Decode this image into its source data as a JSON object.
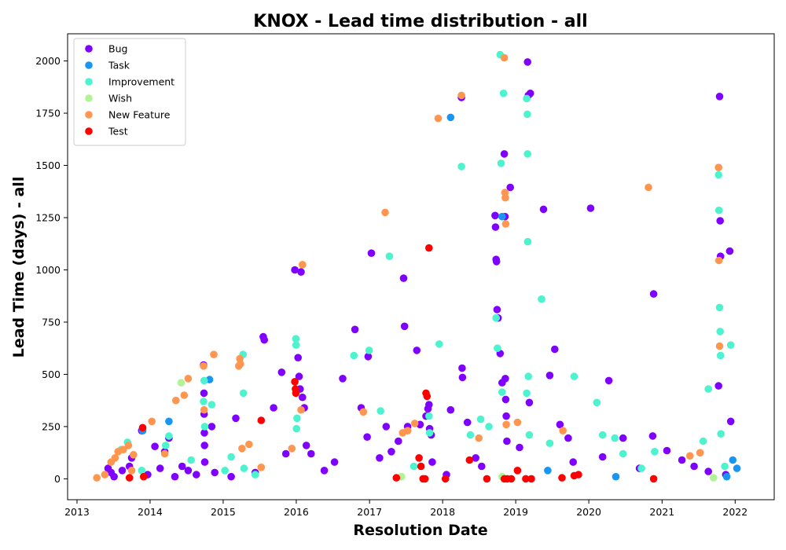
{
  "chart_data": {
    "type": "scatter",
    "title": "KNOX - Lead time distribution - all",
    "xlabel": "Resolution Date",
    "ylabel": "Lead Time (days) - all",
    "x_axis_type": "date",
    "xlim": [
      "2012-11-15",
      "2022-07-15"
    ],
    "ylim": [
      -100,
      2130
    ],
    "xticks": [
      "2013",
      "2014",
      "2015",
      "2016",
      "2017",
      "2018",
      "2019",
      "2020",
      "2021",
      "2022"
    ],
    "yticks": [
      0,
      250,
      500,
      750,
      1000,
      1250,
      1500,
      1750,
      2000
    ],
    "grid": false,
    "legend_position": "top-left",
    "series": [
      {
        "name": "Bug",
        "color": "#8000ff",
        "points": [
          [
            "2013-06-05",
            50
          ],
          [
            "2013-06-20",
            30
          ],
          [
            "2013-07-05",
            10
          ],
          [
            "2013-08-15",
            40
          ],
          [
            "2013-09-20",
            60
          ],
          [
            "2013-10-01",
            100
          ],
          [
            "2013-11-20",
            230
          ],
          [
            "2013-12-20",
            20
          ],
          [
            "2014-01-25",
            155
          ],
          [
            "2014-02-20",
            50
          ],
          [
            "2014-03-15",
            130
          ],
          [
            "2014-04-05",
            195
          ],
          [
            "2014-05-05",
            10
          ],
          [
            "2014-06-10",
            60
          ],
          [
            "2014-07-10",
            40
          ],
          [
            "2014-08-20",
            20
          ],
          [
            "2014-09-25",
            545
          ],
          [
            "2014-09-27",
            410
          ],
          [
            "2014-09-28",
            310
          ],
          [
            "2014-09-29",
            220
          ],
          [
            "2014-09-30",
            160
          ],
          [
            "2014-10-01",
            80
          ],
          [
            "2014-11-05",
            250
          ],
          [
            "2014-11-20",
            30
          ],
          [
            "2015-02-10",
            10
          ],
          [
            "2015-03-05",
            290
          ],
          [
            "2015-06-10",
            30
          ],
          [
            "2015-07-20",
            680
          ],
          [
            "2015-07-25",
            665
          ],
          [
            "2015-09-10",
            340
          ],
          [
            "2015-10-20",
            510
          ],
          [
            "2015-11-10",
            120
          ],
          [
            "2015-12-25",
            1000
          ],
          [
            "2016-01-25",
            990
          ],
          [
            "2016-01-10",
            580
          ],
          [
            "2016-01-15",
            490
          ],
          [
            "2016-01-20",
            430
          ],
          [
            "2016-02-01",
            390
          ],
          [
            "2016-02-10",
            340
          ],
          [
            "2016-02-20",
            160
          ],
          [
            "2016-03-15",
            120
          ],
          [
            "2016-05-20",
            40
          ],
          [
            "2016-07-10",
            80
          ],
          [
            "2016-08-20",
            480
          ],
          [
            "2016-10-20",
            715
          ],
          [
            "2016-11-20",
            340
          ],
          [
            "2016-12-25",
            585
          ],
          [
            "2017-01-10",
            1080
          ],
          [
            "2016-12-20",
            200
          ],
          [
            "2017-02-20",
            100
          ],
          [
            "2017-03-25",
            250
          ],
          [
            "2017-04-20",
            130
          ],
          [
            "2017-05-25",
            180
          ],
          [
            "2017-06-20",
            960
          ],
          [
            "2017-06-25",
            730
          ],
          [
            "2017-07-10",
            250
          ],
          [
            "2017-08-25",
            615
          ],
          [
            "2017-09-10",
            260
          ],
          [
            "2017-10-10",
            300
          ],
          [
            "2017-10-20",
            335
          ],
          [
            "2017-10-25",
            355
          ],
          [
            "2017-10-28",
            240
          ],
          [
            "2017-11-05",
            210
          ],
          [
            "2017-11-10",
            80
          ],
          [
            "2018-01-20",
            20
          ],
          [
            "2018-02-10",
            330
          ],
          [
            "2018-04-05",
            1825
          ],
          [
            "2018-04-08",
            530
          ],
          [
            "2018-04-10",
            485
          ],
          [
            "2018-05-05",
            270
          ],
          [
            "2018-06-15",
            100
          ],
          [
            "2018-07-15",
            60
          ],
          [
            "2018-09-20",
            1260
          ],
          [
            "2018-09-22",
            1205
          ],
          [
            "2018-09-25",
            1050
          ],
          [
            "2018-09-27",
            1040
          ],
          [
            "2018-09-30",
            810
          ],
          [
            "2018-10-05",
            770
          ],
          [
            "2018-10-15",
            600
          ],
          [
            "2018-10-25",
            460
          ],
          [
            "2018-11-05",
            1555
          ],
          [
            "2018-11-08",
            1255
          ],
          [
            "2018-11-10",
            480
          ],
          [
            "2018-11-12",
            380
          ],
          [
            "2018-11-15",
            300
          ],
          [
            "2018-11-18",
            180
          ],
          [
            "2018-12-05",
            1395
          ],
          [
            "2019-01-20",
            150
          ],
          [
            "2019-03-01",
            1995
          ],
          [
            "2019-03-05",
            1835
          ],
          [
            "2019-03-15",
            1845
          ],
          [
            "2019-03-10",
            365
          ],
          [
            "2019-05-20",
            1290
          ],
          [
            "2019-06-20",
            495
          ],
          [
            "2019-07-15",
            620
          ],
          [
            "2019-08-10",
            260
          ],
          [
            "2019-09-20",
            195
          ],
          [
            "2019-10-15",
            80
          ],
          [
            "2020-01-10",
            1295
          ],
          [
            "2020-03-10",
            105
          ],
          [
            "2020-04-10",
            470
          ],
          [
            "2020-06-20",
            195
          ],
          [
            "2020-09-10",
            50
          ],
          [
            "2020-11-20",
            885
          ],
          [
            "2020-11-15",
            205
          ],
          [
            "2021-01-25",
            135
          ],
          [
            "2021-04-10",
            90
          ],
          [
            "2021-06-10",
            60
          ],
          [
            "2021-08-20",
            35
          ],
          [
            "2021-10-15",
            1830
          ],
          [
            "2021-10-18",
            1235
          ],
          [
            "2021-10-20",
            1065
          ],
          [
            "2021-10-10",
            445
          ],
          [
            "2021-12-05",
            1090
          ],
          [
            "2021-12-10",
            275
          ],
          [
            "2021-11-15",
            20
          ]
        ]
      },
      {
        "name": "Task",
        "color": "#1996f3",
        "points": [
          [
            "2013-11-25",
            230
          ],
          [
            "2014-04-05",
            275
          ],
          [
            "2014-10-25",
            475
          ],
          [
            "2018-02-10",
            1730
          ],
          [
            "2018-10-25",
            1255
          ],
          [
            "2019-06-10",
            40
          ],
          [
            "2020-05-15",
            10
          ],
          [
            "2021-12-20",
            90
          ],
          [
            "2022-01-10",
            50
          ],
          [
            "2021-11-20",
            10
          ]
        ]
      },
      {
        "name": "Improvement",
        "color": "#4df3ce",
        "points": [
          [
            "2013-08-10",
            140
          ],
          [
            "2013-09-10",
            175
          ],
          [
            "2013-11-20",
            40
          ],
          [
            "2014-03-20",
            160
          ],
          [
            "2014-04-05",
            205
          ],
          [
            "2014-07-25",
            90
          ],
          [
            "2014-09-25",
            370
          ],
          [
            "2014-09-28",
            470
          ],
          [
            "2014-10-01",
            250
          ],
          [
            "2014-11-05",
            355
          ],
          [
            "2015-01-10",
            40
          ],
          [
            "2015-02-10",
            105
          ],
          [
            "2015-04-10",
            595
          ],
          [
            "2015-04-12",
            410
          ],
          [
            "2015-04-15",
            50
          ],
          [
            "2015-06-10",
            20
          ],
          [
            "2015-12-30",
            670
          ],
          [
            "2015-12-31",
            640
          ],
          [
            "2016-01-02",
            240
          ],
          [
            "2016-01-05",
            290
          ],
          [
            "2016-10-15",
            590
          ],
          [
            "2016-12-30",
            615
          ],
          [
            "2017-04-10",
            1065
          ],
          [
            "2017-02-25",
            325
          ],
          [
            "2017-08-10",
            60
          ],
          [
            "2017-10-25",
            300
          ],
          [
            "2017-10-28",
            220
          ],
          [
            "2017-12-15",
            645
          ],
          [
            "2018-04-05",
            1495
          ],
          [
            "2018-05-20",
            210
          ],
          [
            "2018-07-10",
            285
          ],
          [
            "2018-08-20",
            250
          ],
          [
            "2018-09-25",
            770
          ],
          [
            "2018-10-02",
            625
          ],
          [
            "2018-10-15",
            2030
          ],
          [
            "2018-10-20",
            1510
          ],
          [
            "2018-11-01",
            1845
          ],
          [
            "2018-10-25",
            415
          ],
          [
            "2019-02-25",
            1820
          ],
          [
            "2019-02-28",
            1745
          ],
          [
            "2019-03-01",
            1555
          ],
          [
            "2019-03-02",
            1135
          ],
          [
            "2019-03-05",
            490
          ],
          [
            "2019-03-10",
            210
          ],
          [
            "2019-02-25",
            410
          ],
          [
            "2019-05-10",
            860
          ],
          [
            "2019-06-20",
            170
          ],
          [
            "2019-10-20",
            490
          ],
          [
            "2020-02-10",
            365
          ],
          [
            "2020-03-10",
            210
          ],
          [
            "2020-05-10",
            195
          ],
          [
            "2020-06-20",
            120
          ],
          [
            "2020-09-20",
            50
          ],
          [
            "2020-11-25",
            130
          ],
          [
            "2021-07-25",
            180
          ],
          [
            "2021-08-20",
            430
          ],
          [
            "2021-10-10",
            1455
          ],
          [
            "2021-10-12",
            1285
          ],
          [
            "2021-10-15",
            820
          ],
          [
            "2021-10-18",
            705
          ],
          [
            "2021-10-20",
            590
          ],
          [
            "2021-10-22",
            215
          ],
          [
            "2021-12-10",
            640
          ],
          [
            "2021-11-10",
            60
          ]
        ]
      },
      {
        "name": "Wish",
        "color": "#b2f396",
        "points": [
          [
            "2014-06-05",
            460
          ],
          [
            "2018-10-25",
            10
          ],
          [
            "2021-09-15",
            5
          ],
          [
            "2017-06-10",
            10
          ]
        ]
      },
      {
        "name": "New Feature",
        "color": "#ff964f",
        "points": [
          [
            "2013-04-10",
            5
          ],
          [
            "2013-05-20",
            20
          ],
          [
            "2013-06-20",
            80
          ],
          [
            "2013-07-10",
            100
          ],
          [
            "2013-07-25",
            130
          ],
          [
            "2013-08-20",
            140
          ],
          [
            "2013-09-15",
            160
          ],
          [
            "2013-10-10",
            115
          ],
          [
            "2013-10-01",
            40
          ],
          [
            "2014-01-10",
            275
          ],
          [
            "2014-03-15",
            120
          ],
          [
            "2014-05-10",
            375
          ],
          [
            "2014-06-20",
            400
          ],
          [
            "2014-07-10",
            480
          ],
          [
            "2014-09-25",
            540
          ],
          [
            "2014-09-28",
            330
          ],
          [
            "2014-11-15",
            595
          ],
          [
            "2015-03-20",
            540
          ],
          [
            "2015-03-25",
            575
          ],
          [
            "2015-03-28",
            550
          ],
          [
            "2015-04-05",
            145
          ],
          [
            "2015-05-10",
            165
          ],
          [
            "2015-07-10",
            55
          ],
          [
            "2015-12-10",
            145
          ],
          [
            "2016-02-01",
            1025
          ],
          [
            "2016-01-25",
            330
          ],
          [
            "2016-12-01",
            320
          ],
          [
            "2017-03-20",
            1275
          ],
          [
            "2017-06-15",
            220
          ],
          [
            "2017-07-10",
            230
          ],
          [
            "2017-08-15",
            265
          ],
          [
            "2017-12-10",
            1725
          ],
          [
            "2018-04-05",
            1835
          ],
          [
            "2018-07-01",
            195
          ],
          [
            "2018-11-05",
            2015
          ],
          [
            "2018-11-08",
            1370
          ],
          [
            "2018-11-10",
            1345
          ],
          [
            "2018-11-12",
            1220
          ],
          [
            "2018-11-15",
            260
          ],
          [
            "2019-01-10",
            270
          ],
          [
            "2019-08-25",
            230
          ],
          [
            "2020-10-25",
            1395
          ],
          [
            "2021-05-20",
            110
          ],
          [
            "2021-07-10",
            125
          ],
          [
            "2021-10-10",
            1490
          ],
          [
            "2021-10-12",
            1045
          ],
          [
            "2021-10-15",
            635
          ]
        ]
      },
      {
        "name": "Test",
        "color": "#ff0000",
        "points": [
          [
            "2013-09-20",
            5
          ],
          [
            "2013-11-25",
            245
          ],
          [
            "2013-11-30",
            10
          ],
          [
            "2015-07-10",
            280
          ],
          [
            "2015-12-25",
            465
          ],
          [
            "2015-12-28",
            430
          ],
          [
            "2015-12-30",
            410
          ],
          [
            "2017-05-15",
            5
          ],
          [
            "2017-09-05",
            100
          ],
          [
            "2017-09-15",
            60
          ],
          [
            "2017-10-10",
            410
          ],
          [
            "2017-10-15",
            395
          ],
          [
            "2017-10-25",
            1105
          ],
          [
            "2017-09-25",
            0
          ],
          [
            "2017-10-05",
            0
          ],
          [
            "2018-01-15",
            0
          ],
          [
            "2018-05-15",
            90
          ],
          [
            "2018-08-10",
            0
          ],
          [
            "2018-11-05",
            0
          ],
          [
            "2018-11-20",
            0
          ],
          [
            "2018-12-10",
            0
          ],
          [
            "2019-01-10",
            40
          ],
          [
            "2019-02-20",
            0
          ],
          [
            "2019-03-20",
            0
          ],
          [
            "2019-08-20",
            5
          ],
          [
            "2019-10-20",
            15
          ],
          [
            "2019-11-10",
            20
          ],
          [
            "2020-11-20",
            0
          ]
        ]
      }
    ]
  }
}
